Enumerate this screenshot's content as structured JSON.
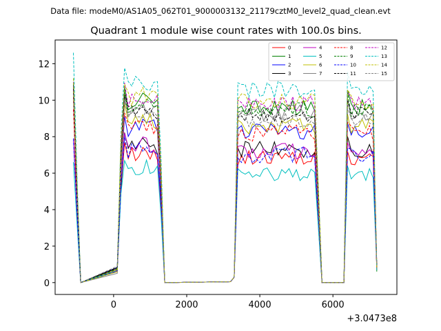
{
  "chart_data": {
    "type": "line",
    "suptitle": "Data file: modeM0/AS1A05_062T01_9000003132_21179cztM0_level2_quad_clean.evt",
    "title": "Quadrant 1 module wise count rates with 100.0s bins.",
    "xlabel": "",
    "ylabel": "",
    "x_offset_label": "+3.0473e8",
    "xlim": [
      -1600,
      7750
    ],
    "ylim": [
      -0.65,
      13.3
    ],
    "xticks": [
      0,
      2000,
      4000,
      6000
    ],
    "yticks": [
      0,
      2,
      4,
      6,
      8,
      10,
      12
    ],
    "x_points": [
      -1100,
      -1000,
      -900,
      100,
      200,
      300,
      400,
      500,
      600,
      700,
      800,
      900,
      1000,
      1100,
      1200,
      1300,
      1400,
      3200,
      3300,
      3400,
      3500,
      3600,
      3700,
      3800,
      3900,
      4000,
      4100,
      4200,
      4300,
      4400,
      4500,
      4600,
      4700,
      4800,
      4900,
      5000,
      5100,
      5200,
      5300,
      5400,
      5500,
      5600,
      5700,
      6300,
      6400,
      6500,
      6600,
      6700,
      6800,
      6900,
      7000,
      7100,
      7200
    ],
    "series_levels": [
      {
        "name": "0",
        "level": 6.8
      },
      {
        "name": "1",
        "level": 9.6
      },
      {
        "name": "2",
        "level": 8.3
      },
      {
        "name": "3",
        "level": 7.3
      },
      {
        "name": "4",
        "level": 7.2
      },
      {
        "name": "5",
        "level": 5.9
      },
      {
        "name": "6",
        "level": 8.6
      },
      {
        "name": "7",
        "level": 9.3
      },
      {
        "name": "8",
        "level": 8.2
      },
      {
        "name": "9",
        "level": 9.5
      },
      {
        "name": "10",
        "level": 7.0
      },
      {
        "name": "11",
        "level": 9.2
      },
      {
        "name": "12",
        "level": 9.8
      },
      {
        "name": "13",
        "level": 10.6
      },
      {
        "name": "14",
        "level": 9.9
      },
      {
        "name": "15",
        "level": 8.9
      }
    ],
    "initial_peak": [
      10.2,
      10.5,
      11.0,
      10.8,
      7.8,
      6.6,
      10.4,
      10.6,
      9.5,
      10.9,
      7.9,
      10.6,
      11.0,
      12.6,
      11.2,
      10.3
    ],
    "legend": [
      "0",
      "1",
      "2",
      "3",
      "4",
      "5",
      "6",
      "7",
      "8",
      "9",
      "10",
      "11",
      "12",
      "13",
      "14",
      "15"
    ],
    "legend_position": "top-right"
  },
  "series_styles": [
    {
      "color": "#ff0000",
      "dash": false
    },
    {
      "color": "#008000",
      "dash": false
    },
    {
      "color": "#0000ff",
      "dash": false
    },
    {
      "color": "#000000",
      "dash": false
    },
    {
      "color": "#bf00bf",
      "dash": false
    },
    {
      "color": "#00bfbf",
      "dash": false
    },
    {
      "color": "#bfbf00",
      "dash": false
    },
    {
      "color": "#808080",
      "dash": false
    },
    {
      "color": "#ff0000",
      "dash": true
    },
    {
      "color": "#008000",
      "dash": true
    },
    {
      "color": "#0000ff",
      "dash": true
    },
    {
      "color": "#000000",
      "dash": true
    },
    {
      "color": "#bf00bf",
      "dash": true
    },
    {
      "color": "#00bfbf",
      "dash": true
    },
    {
      "color": "#bfbf00",
      "dash": true
    },
    {
      "color": "#808080",
      "dash": true
    }
  ]
}
